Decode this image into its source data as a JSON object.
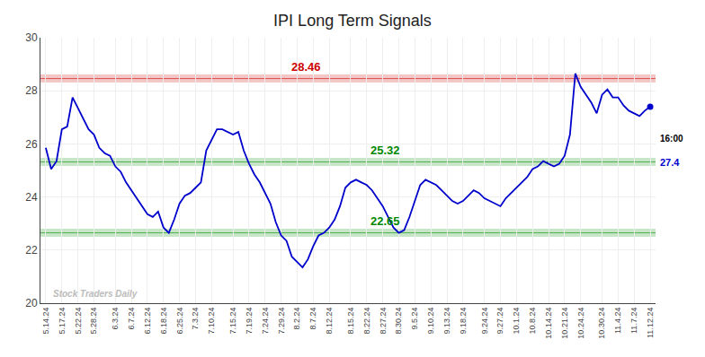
{
  "chart_data": {
    "type": "line",
    "title": "IPI Long Term Signals",
    "categories": [
      "5.14.24",
      null,
      null,
      "5.17.24",
      null,
      null,
      "5.22.24",
      null,
      null,
      "5.28.24",
      null,
      null,
      null,
      "6.3.24",
      null,
      null,
      "6.7.24",
      null,
      null,
      "6.12.24",
      null,
      null,
      "6.18.24",
      null,
      null,
      "6.25.24",
      null,
      null,
      "7.3.24",
      null,
      null,
      "7.10.24",
      null,
      null,
      null,
      "7.15.24",
      null,
      null,
      "7.19.24",
      null,
      null,
      "7.24.24",
      null,
      null,
      "7.29.24",
      null,
      null,
      "8.2.24",
      null,
      null,
      "8.7.24",
      null,
      null,
      "8.12.24",
      null,
      null,
      null,
      "8.15.24",
      null,
      null,
      "8.22.24",
      null,
      null,
      "8.27.24",
      null,
      null,
      "8.30.24",
      null,
      null,
      "9.5.24",
      null,
      null,
      "9.10.24",
      null,
      null,
      "9.13.24",
      null,
      null,
      "9.18.24",
      null,
      null,
      null,
      "9.24.24",
      null,
      null,
      "9.27.24",
      null,
      null,
      "10.1.24",
      null,
      null,
      "10.8.24",
      null,
      null,
      "10.14.24",
      null,
      null,
      "10.21.24",
      null,
      null,
      "10.24.24",
      null,
      null,
      null,
      "10.30.24",
      null,
      null,
      "11.4.24",
      null,
      null,
      "11.7.24",
      null,
      null,
      "11.12.24"
    ],
    "values": [
      25.85,
      25.05,
      25.35,
      26.55,
      26.65,
      27.75,
      27.35,
      26.95,
      26.55,
      26.35,
      25.85,
      25.65,
      25.55,
      25.15,
      24.95,
      24.55,
      24.25,
      23.95,
      23.65,
      23.35,
      23.25,
      23.45,
      22.85,
      22.65,
      23.15,
      23.75,
      24.05,
      24.15,
      24.35,
      24.55,
      25.75,
      26.15,
      26.55,
      26.55,
      26.45,
      26.35,
      26.45,
      25.75,
      25.25,
      24.85,
      24.55,
      24.15,
      23.75,
      23.05,
      22.55,
      22.35,
      21.75,
      21.55,
      21.35,
      21.65,
      22.15,
      22.55,
      22.65,
      22.85,
      23.15,
      23.65,
      24.35,
      24.55,
      24.65,
      24.55,
      24.45,
      24.25,
      23.95,
      23.65,
      23.25,
      22.85,
      22.65,
      22.75,
      23.25,
      23.85,
      24.45,
      24.65,
      24.55,
      24.45,
      24.25,
      24.05,
      23.85,
      23.75,
      23.85,
      24.05,
      24.25,
      24.15,
      23.95,
      23.85,
      23.75,
      23.65,
      23.95,
      24.15,
      24.35,
      24.55,
      24.75,
      25.05,
      25.15,
      25.35,
      25.25,
      25.15,
      25.25,
      25.55,
      26.35,
      28.65,
      28.15,
      27.85,
      27.55,
      27.15,
      27.85,
      28.05,
      27.75,
      27.75,
      27.45,
      27.25,
      27.15,
      27.05,
      27.25,
      27.4
    ],
    "color": "#0000cc",
    "ylim": [
      20,
      30
    ],
    "yticks": [
      20,
      22,
      24,
      26,
      28,
      30
    ],
    "grid": true,
    "hlines": [
      {
        "value": 28.46,
        "label": "28.46",
        "color": "#cc0000"
      },
      {
        "value": 25.32,
        "label": "25.32",
        "color": "#008800"
      },
      {
        "value": 22.65,
        "label": "22.65",
        "color": "#008800"
      }
    ],
    "end_label": "16:00",
    "end_value": "27.4",
    "watermark": "Stock Traders Daily"
  }
}
